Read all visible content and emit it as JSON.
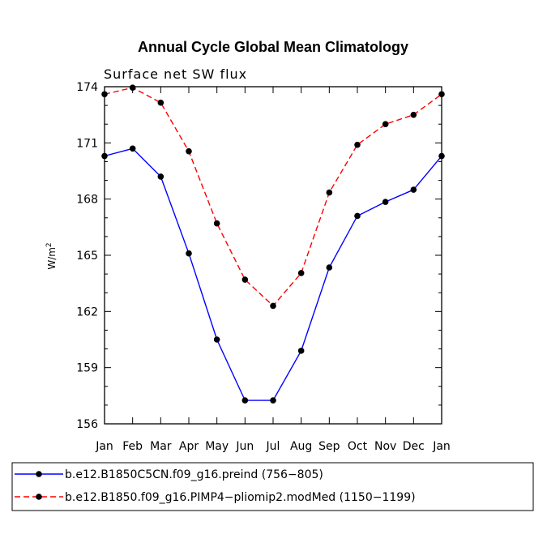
{
  "chart_data": {
    "type": "line",
    "title": "Annual Cycle Global Mean Climatology",
    "subtitle": "Surface net SW flux",
    "ylabel_base": "W/m",
    "ylabel_sup": "2",
    "ylabel": "W/m^2",
    "xlabel": "",
    "categories": [
      "Jan",
      "Feb",
      "Mar",
      "Apr",
      "May",
      "Jun",
      "Jul",
      "Aug",
      "Sep",
      "Oct",
      "Nov",
      "Dec",
      "Jan"
    ],
    "ylim": [
      156,
      174
    ],
    "yticks": [
      156,
      159,
      162,
      165,
      168,
      171,
      174
    ],
    "series": [
      {
        "name": "b.e12.B1850C5CN.f09_g16.preind (756−805)",
        "color": "#0000ff",
        "dash": "solid",
        "values": [
          170.3,
          170.7,
          169.2,
          165.1,
          160.5,
          157.25,
          157.25,
          159.9,
          164.35,
          167.1,
          167.85,
          168.5,
          170.3
        ]
      },
      {
        "name": "b.e12.B1850.f09_g16.PIMP4−pliomip2.modMed (1150−1199)",
        "color": "#ff0000",
        "dash": "dashed",
        "values": [
          173.6,
          173.95,
          173.15,
          170.55,
          166.7,
          163.7,
          162.3,
          164.05,
          168.35,
          170.9,
          172.0,
          172.5,
          173.6
        ]
      }
    ],
    "marker": "filled-circle",
    "marker_color": "#000000",
    "grid": false,
    "legend_position": "bottom-left, below plot"
  }
}
